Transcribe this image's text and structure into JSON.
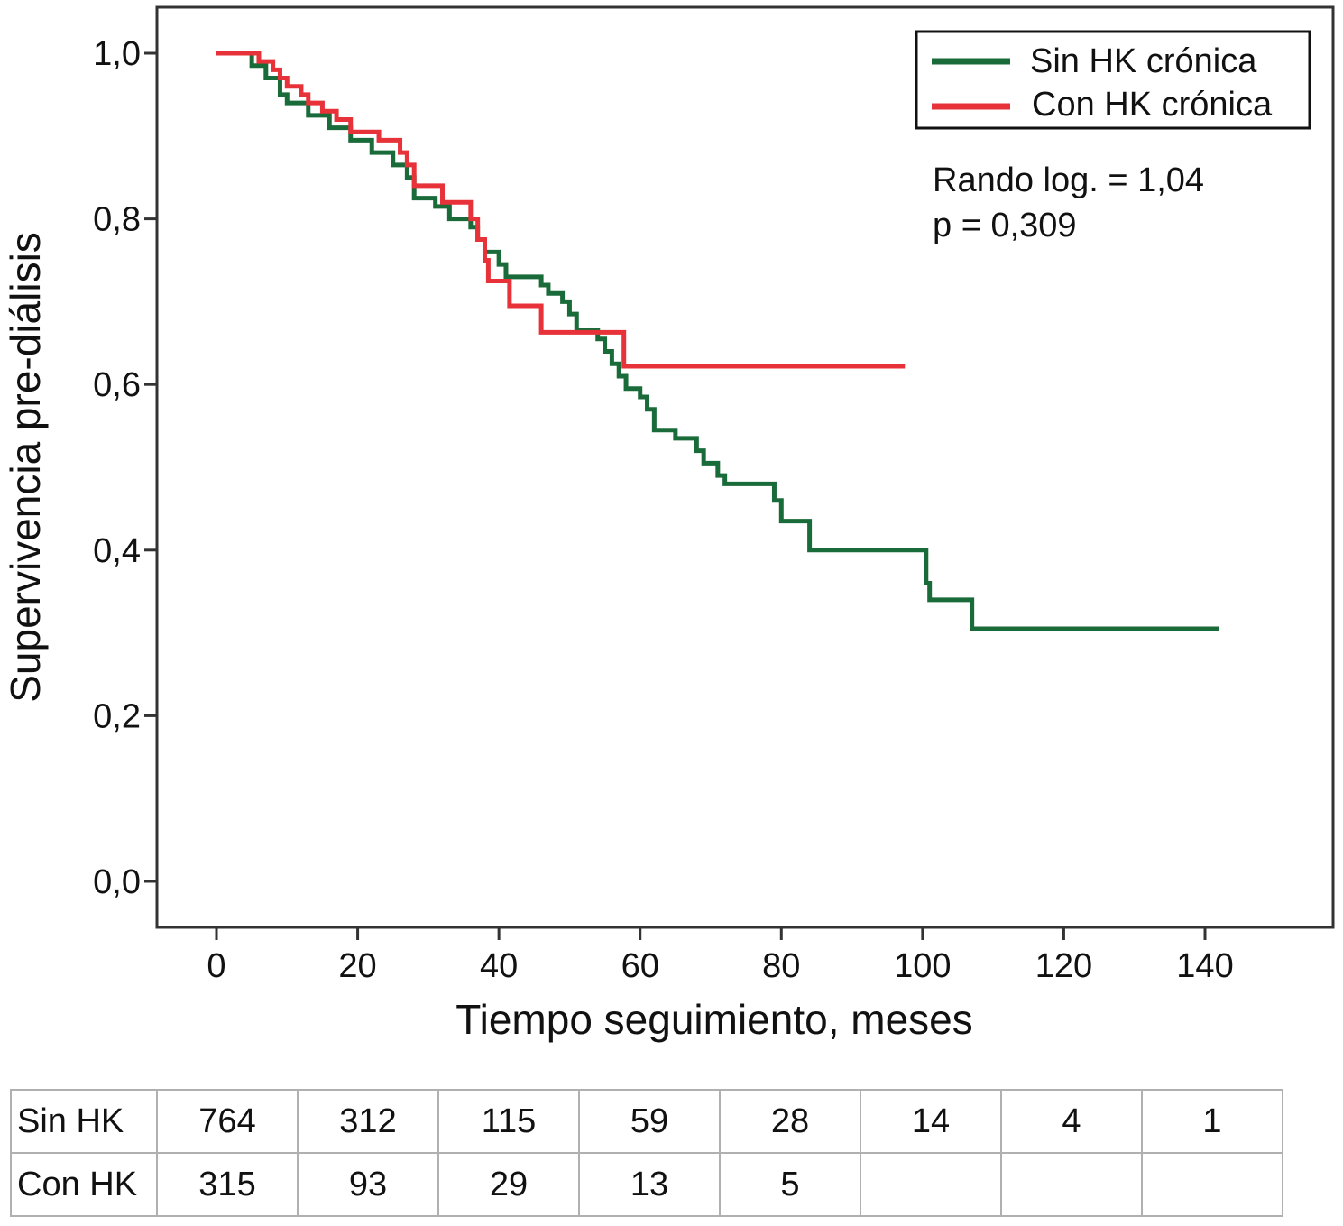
{
  "chart_data": {
    "type": "line",
    "subtype": "kaplan-meier-step",
    "xlabel": "Tiempo seguimiento, meses",
    "ylabel": "Supervivencia pre-diálisis",
    "xlim": [
      -10,
      158
    ],
    "ylim": [
      -0.055,
      1.055
    ],
    "xticks": [
      0,
      20,
      40,
      60,
      80,
      100,
      120,
      140
    ],
    "xtick_labels": [
      "0",
      "20",
      "40",
      "60",
      "80",
      "100",
      "120",
      "140"
    ],
    "yticks": [
      0,
      0.2,
      0.4,
      0.6,
      0.8,
      1.0
    ],
    "ytick_labels": [
      "0,0",
      "0,2",
      "0,4",
      "0,6",
      "0,8",
      "1,0"
    ],
    "grid": false,
    "legend_position": "top-right",
    "annotation": [
      "Rando log. = 1,04",
      "p = 0,309"
    ],
    "series": [
      {
        "name": "Sin HK crónica",
        "color": "#1a6b3a",
        "points": [
          [
            0,
            1
          ],
          [
            3.5,
            1
          ],
          [
            5,
            0.985
          ],
          [
            7,
            0.97
          ],
          [
            9,
            0.95
          ],
          [
            10,
            0.94
          ],
          [
            13,
            0.925
          ],
          [
            16,
            0.91
          ],
          [
            19,
            0.895
          ],
          [
            22,
            0.88
          ],
          [
            25,
            0.865
          ],
          [
            27,
            0.85
          ],
          [
            28,
            0.825
          ],
          [
            31,
            0.815
          ],
          [
            33,
            0.8
          ],
          [
            36,
            0.79
          ],
          [
            37,
            0.775
          ],
          [
            38,
            0.76
          ],
          [
            40,
            0.745
          ],
          [
            41,
            0.73
          ],
          [
            46,
            0.72
          ],
          [
            47,
            0.71
          ],
          [
            49,
            0.7
          ],
          [
            50,
            0.685
          ],
          [
            51,
            0.665
          ],
          [
            54,
            0.655
          ],
          [
            55,
            0.64
          ],
          [
            56,
            0.625
          ],
          [
            57,
            0.61
          ],
          [
            58,
            0.595
          ],
          [
            60,
            0.585
          ],
          [
            61,
            0.57
          ],
          [
            62,
            0.545
          ],
          [
            65,
            0.535
          ],
          [
            68,
            0.52
          ],
          [
            69,
            0.505
          ],
          [
            71,
            0.49
          ],
          [
            72,
            0.48
          ],
          [
            79,
            0.46
          ],
          [
            80,
            0.435
          ],
          [
            84,
            0.4
          ],
          [
            100.5,
            0.36
          ],
          [
            101,
            0.34
          ],
          [
            107,
            0.305
          ],
          [
            142,
            0.305
          ]
        ]
      },
      {
        "name": "Con HK crónica",
        "color": "#e8323a",
        "points": [
          [
            0,
            1
          ],
          [
            5,
            1
          ],
          [
            6,
            0.99
          ],
          [
            8,
            0.98
          ],
          [
            9,
            0.97
          ],
          [
            10,
            0.96
          ],
          [
            12,
            0.95
          ],
          [
            13,
            0.94
          ],
          [
            15,
            0.93
          ],
          [
            17,
            0.92
          ],
          [
            19,
            0.905
          ],
          [
            23,
            0.895
          ],
          [
            26,
            0.88
          ],
          [
            27,
            0.865
          ],
          [
            28,
            0.84
          ],
          [
            32,
            0.82
          ],
          [
            36,
            0.8
          ],
          [
            37,
            0.775
          ],
          [
            38,
            0.75
          ],
          [
            38.5,
            0.725
          ],
          [
            41.5,
            0.695
          ],
          [
            46,
            0.663
          ],
          [
            57.7,
            0.622
          ],
          [
            97.5,
            0.622
          ]
        ]
      }
    ]
  },
  "risk_table": {
    "rows": [
      {
        "label": "Sin HK",
        "values": [
          "764",
          "312",
          "115",
          "59",
          "28",
          "14",
          "4",
          "1"
        ]
      },
      {
        "label": "Con HK",
        "values": [
          "315",
          "93",
          "29",
          "13",
          "5",
          "",
          "",
          ""
        ]
      }
    ]
  }
}
